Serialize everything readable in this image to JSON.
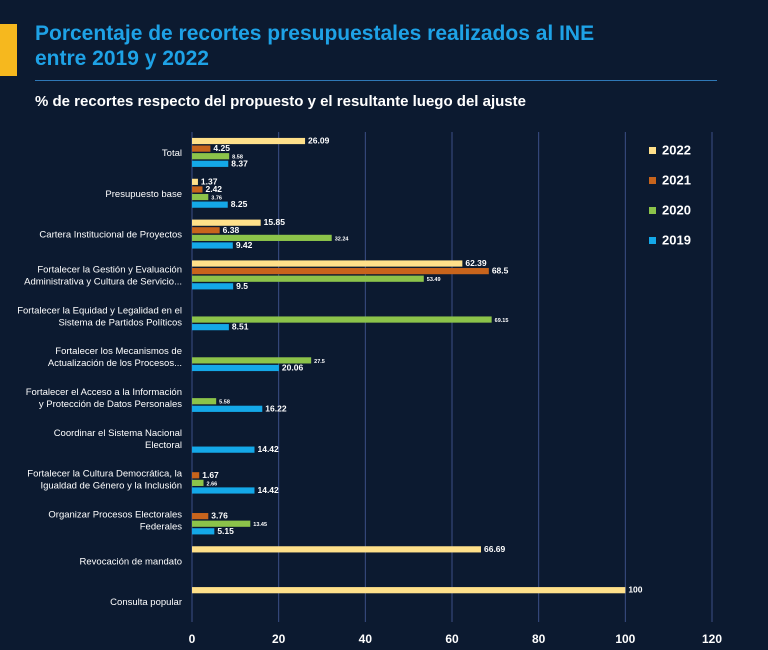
{
  "header": {
    "title_line1": "Porcentaje de recortes presupuestales realizados al INE",
    "title_line2": "entre 2019 y 2022",
    "subtitle": "% de recortes  respecto del propuesto y el resultante luego del ajuste"
  },
  "colors": {
    "background": "#0c1a30",
    "accent": "#f6b81e",
    "title": "#1ea2e6",
    "gridline": "#3b4f86"
  },
  "chart_data": {
    "type": "bar",
    "orientation": "horizontal",
    "title": "% de recortes  respecto del propuesto y el resultante luego del ajuste",
    "xlim": [
      0,
      120
    ],
    "xticks": [
      0,
      20,
      40,
      60,
      80,
      100,
      120
    ],
    "grid": true,
    "legend_position": "right",
    "categories": [
      [
        "Total"
      ],
      [
        "Presupuesto base"
      ],
      [
        "Cartera Institucional de Proyectos"
      ],
      [
        "Fortalecer la Gestión y Evaluación",
        "Administrativa y Cultura de Servicio..."
      ],
      [
        "Fortalecer la Equidad y Legalidad en el",
        "Sistema de Partidos Políticos"
      ],
      [
        "Fortalecer los Mecanismos de",
        "Actualización de los Procesos..."
      ],
      [
        "Fortalecer el Acceso a la Información",
        "y Protección de Datos Personales"
      ],
      [
        "Coordinar el Sistema Nacional",
        "Electoral"
      ],
      [
        "Fortalecer la Cultura Democrática, la",
        "Igualdad de Género y la Inclusión"
      ],
      [
        "Organizar Procesos Electorales",
        "Federales"
      ],
      [
        "Revocación de mandato"
      ],
      [
        "Consulta popular"
      ]
    ],
    "series": [
      {
        "name": "2022",
        "color": "#ffe08a",
        "values": [
          26.09,
          1.37,
          15.85,
          62.39,
          null,
          null,
          null,
          null,
          null,
          null,
          66.69,
          100
        ]
      },
      {
        "name": "2021",
        "color": "#c8641c",
        "values": [
          4.25,
          2.42,
          6.38,
          68.5,
          null,
          null,
          null,
          null,
          1.67,
          3.76,
          null,
          null
        ]
      },
      {
        "name": "2020",
        "color": "#8cc34a",
        "values": [
          8.58,
          3.76,
          32.24,
          53.49,
          69.15,
          27.5,
          5.58,
          null,
          2.66,
          13.45,
          null,
          null
        ]
      },
      {
        "name": "2019",
        "color": "#14a8e8",
        "values": [
          8.37,
          8.25,
          9.42,
          9.5,
          8.51,
          20.06,
          16.22,
          14.42,
          14.42,
          5.15,
          null,
          null
        ]
      }
    ]
  }
}
